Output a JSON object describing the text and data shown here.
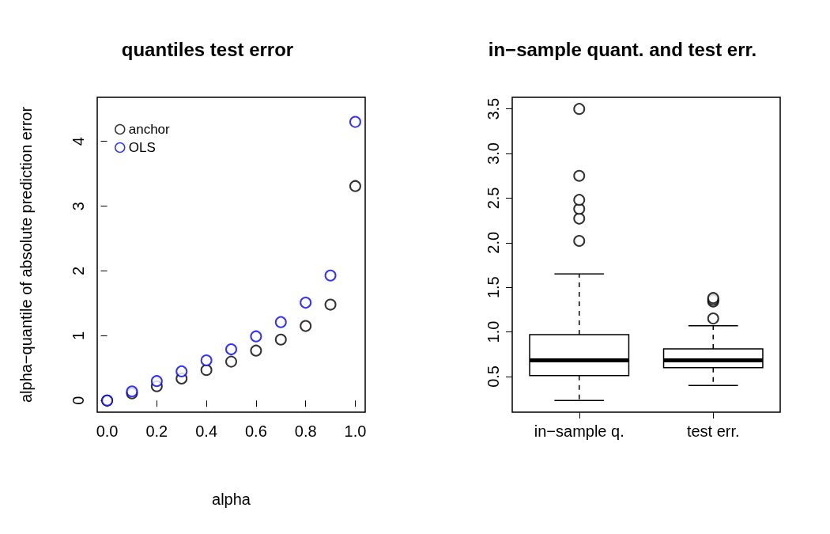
{
  "chart_data": [
    {
      "type": "scatter",
      "title": "quantiles test error",
      "xlabel": "alpha",
      "ylabel": "alpha−quantile of absolute prediction error",
      "x": [
        0,
        0.1,
        0.2,
        0.3,
        0.4,
        0.5,
        0.6,
        0.7,
        0.8,
        0.9,
        1.0
      ],
      "series": [
        {
          "name": "anchor",
          "color": "#000000",
          "values": [
            0,
            0.11,
            0.22,
            0.34,
            0.47,
            0.6,
            0.77,
            0.94,
            1.15,
            1.48,
            3.31
          ]
        },
        {
          "name": "OLS",
          "color": "#0000ff",
          "values": [
            0,
            0.14,
            0.3,
            0.45,
            0.62,
            0.79,
            0.99,
            1.21,
            1.51,
            1.93,
            4.3
          ]
        }
      ],
      "xlim": [
        -0.04,
        1.04
      ],
      "xticks": [
        {
          "value": 0,
          "label": "0.0"
        },
        {
          "value": 0.2,
          "label": "0.2"
        },
        {
          "value": 0.4,
          "label": "0.4"
        },
        {
          "value": 0.6,
          "label": "0.6"
        },
        {
          "value": 0.8,
          "label": "0.8"
        },
        {
          "value": 1,
          "label": "1.0"
        }
      ],
      "ylim": [
        -0.18,
        4.68
      ],
      "yticks": [
        0,
        1,
        2,
        3,
        4
      ],
      "legend": "top left",
      "marker": "circle",
      "grid": false
    },
    {
      "type": "box",
      "title": "in−sample quant. and test err.",
      "categories": [
        "in−sample q.",
        "test err."
      ],
      "series": [
        {
          "color": "#000000",
          "boxes": [
            {
              "low": 0.23,
              "q1": 0.51,
              "median": 0.68,
              "q3": 0.97,
              "high": 1.65,
              "outliers": [
                2.02,
                2.27,
                2.38,
                2.48,
                2.75,
                3.5
              ]
            },
            {
              "low": 0.4,
              "q1": 0.6,
              "median": 0.68,
              "q3": 0.81,
              "high": 1.07,
              "outliers": [
                1.15,
                1.34,
                1.36,
                1.38
              ]
            }
          ]
        }
      ],
      "ylim": [
        0.1,
        3.63
      ],
      "yticks": [
        {
          "value": 0.5,
          "label": "0.5"
        },
        {
          "value": 1,
          "label": "1.0"
        },
        {
          "value": 1.5,
          "label": "1.5"
        },
        {
          "value": 2,
          "label": "2.0"
        },
        {
          "value": 2.5,
          "label": "2.5"
        },
        {
          "value": 3,
          "label": "3.0"
        },
        {
          "value": 3.5,
          "label": "3.5"
        }
      ],
      "grid": false
    }
  ]
}
